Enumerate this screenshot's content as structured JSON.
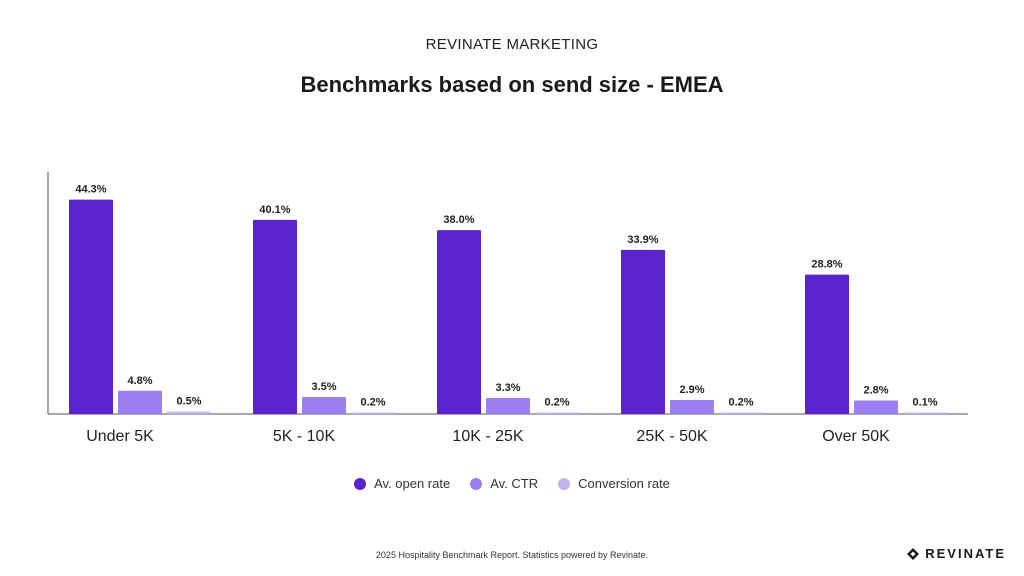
{
  "header": {
    "supertitle": "REVINATE MARKETING"
  },
  "footer": {
    "note": "2025 Hospitality Benchmark Report. Statistics powered by Revinate.",
    "logo_text": "REVINATE",
    "logo_icon": "revinate-logo-icon"
  },
  "chart_data": {
    "type": "bar",
    "title": "Benchmarks based on send size - EMEA",
    "xlabel": "",
    "ylabel": "",
    "categories": [
      "Under 5K",
      "5K - 10K",
      "10K - 25K",
      "25K - 50K",
      "Over 50K"
    ],
    "series": [
      {
        "name": "Av. open rate",
        "color": "#5b23cc",
        "values": [
          44.3,
          40.1,
          38.0,
          33.9,
          28.8
        ],
        "labels": [
          "44.3%",
          "40.1%",
          "38.0%",
          "33.9%",
          "28.8%"
        ]
      },
      {
        "name": "Av. CTR",
        "color": "#9b7ff0",
        "values": [
          4.8,
          3.5,
          3.3,
          2.9,
          2.8
        ],
        "labels": [
          "4.8%",
          "3.5%",
          "3.3%",
          "2.9%",
          "2.8%"
        ]
      },
      {
        "name": "Conversion rate",
        "color": "#c3b3ee",
        "values": [
          0.5,
          0.2,
          0.2,
          0.2,
          0.1
        ],
        "labels": [
          "0.5%",
          "0.2%",
          "0.2%",
          "0.2%",
          "0.1%"
        ]
      }
    ],
    "ylim": [
      0,
      50
    ],
    "grid": false,
    "legend_position": "bottom"
  }
}
